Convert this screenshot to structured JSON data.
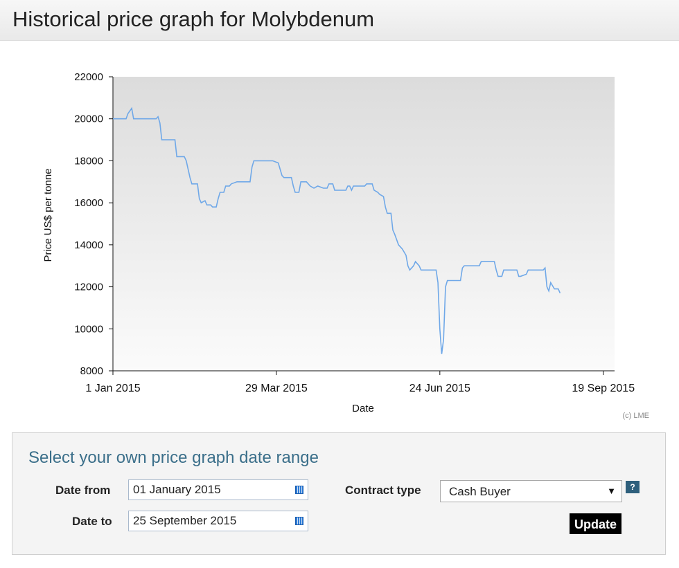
{
  "page": {
    "title": "Historical price graph for Molybdenum"
  },
  "chart_data": {
    "type": "line",
    "ylabel": "Price US$ per tonne",
    "xlabel": "Date",
    "copyright": "(c) LME",
    "x_tick_labels": [
      "1 Jan 2015",
      "29 Mar 2015",
      "24 Jun 2015",
      "19 Sep 2015"
    ],
    "x_ticks_days": [
      0,
      87,
      174,
      261
    ],
    "xlim_days": [
      0,
      267
    ],
    "ylim": [
      8000,
      22000
    ],
    "y_ticks": [
      8000,
      10000,
      12000,
      14000,
      16000,
      18000,
      20000,
      22000
    ],
    "line_color": "#6fa8e8",
    "grid": false,
    "series": [
      {
        "points": [
          [
            0,
            20000
          ],
          [
            6,
            20000
          ],
          [
            7,
            20000
          ],
          [
            8,
            20250
          ],
          [
            10,
            20500
          ],
          [
            11,
            20000
          ],
          [
            13,
            20000
          ],
          [
            20,
            20000
          ],
          [
            23,
            20000
          ],
          [
            24,
            20100
          ],
          [
            25,
            19800
          ],
          [
            26,
            19000
          ],
          [
            30,
            19000
          ],
          [
            33,
            19000
          ],
          [
            34,
            18200
          ],
          [
            38,
            18200
          ],
          [
            39,
            18000
          ],
          [
            40,
            17600
          ],
          [
            41,
            17200
          ],
          [
            42,
            16900
          ],
          [
            45,
            16900
          ],
          [
            46,
            16200
          ],
          [
            47,
            16000
          ],
          [
            49,
            16100
          ],
          [
            50,
            15900
          ],
          [
            52,
            15900
          ],
          [
            53,
            15800
          ],
          [
            55,
            15800
          ],
          [
            56,
            16200
          ],
          [
            57,
            16500
          ],
          [
            59,
            16500
          ],
          [
            60,
            16800
          ],
          [
            62,
            16800
          ],
          [
            63,
            16900
          ],
          [
            66,
            17000
          ],
          [
            70,
            17000
          ],
          [
            73,
            17000
          ],
          [
            74,
            17700
          ],
          [
            75,
            18000
          ],
          [
            80,
            18000
          ],
          [
            85,
            18000
          ],
          [
            88,
            17900
          ],
          [
            89,
            17600
          ],
          [
            90,
            17300
          ],
          [
            91,
            17200
          ],
          [
            95,
            17200
          ],
          [
            96,
            16800
          ],
          [
            97,
            16500
          ],
          [
            99,
            16500
          ],
          [
            100,
            17000
          ],
          [
            103,
            17000
          ],
          [
            105,
            16800
          ],
          [
            107,
            16700
          ],
          [
            109,
            16800
          ],
          [
            112,
            16700
          ],
          [
            114,
            16700
          ],
          [
            115,
            16900
          ],
          [
            117,
            16900
          ],
          [
            118,
            16600
          ],
          [
            124,
            16600
          ],
          [
            125,
            16800
          ],
          [
            126,
            16800
          ],
          [
            127,
            16600
          ],
          [
            128,
            16800
          ],
          [
            134,
            16800
          ],
          [
            135,
            16900
          ],
          [
            138,
            16900
          ],
          [
            139,
            16600
          ],
          [
            141,
            16500
          ],
          [
            142,
            16400
          ],
          [
            144,
            16300
          ],
          [
            145,
            15800
          ],
          [
            146,
            15500
          ],
          [
            148,
            15500
          ],
          [
            149,
            14700
          ],
          [
            150,
            14500
          ],
          [
            152,
            14000
          ],
          [
            154,
            13800
          ],
          [
            156,
            13500
          ],
          [
            157,
            13000
          ],
          [
            158,
            12800
          ],
          [
            160,
            13000
          ],
          [
            161,
            13200
          ],
          [
            163,
            13000
          ],
          [
            164,
            12800
          ],
          [
            170,
            12800
          ],
          [
            172,
            12800
          ],
          [
            173,
            12200
          ],
          [
            174,
            10000
          ],
          [
            175,
            8800
          ],
          [
            176,
            9500
          ],
          [
            177,
            12000
          ],
          [
            178,
            12300
          ],
          [
            182,
            12300
          ],
          [
            184,
            12300
          ],
          [
            185,
            12300
          ],
          [
            186,
            12900
          ],
          [
            187,
            13000
          ],
          [
            190,
            13000
          ],
          [
            195,
            13000
          ],
          [
            196,
            13200
          ],
          [
            203,
            13200
          ],
          [
            204,
            12800
          ],
          [
            205,
            12500
          ],
          [
            207,
            12500
          ],
          [
            208,
            12800
          ],
          [
            210,
            12800
          ],
          [
            215,
            12800
          ],
          [
            216,
            12500
          ],
          [
            217,
            12500
          ],
          [
            220,
            12600
          ],
          [
            221,
            12800
          ],
          [
            225,
            12800
          ],
          [
            229,
            12800
          ],
          [
            230,
            12900
          ],
          [
            231,
            12000
          ],
          [
            232,
            11800
          ],
          [
            233,
            12200
          ],
          [
            235,
            11900
          ],
          [
            237,
            11900
          ],
          [
            238,
            11700
          ]
        ]
      }
    ]
  },
  "form": {
    "heading": "Select your own price graph date range",
    "date_from_label": "Date from",
    "date_from_value": "01 January 2015",
    "date_to_label": "Date to",
    "date_to_value": "25 September 2015",
    "contract_label": "Contract type",
    "contract_value": "Cash Buyer",
    "help_label": "?",
    "update_label": "Update",
    "select_arrow": "▼"
  }
}
